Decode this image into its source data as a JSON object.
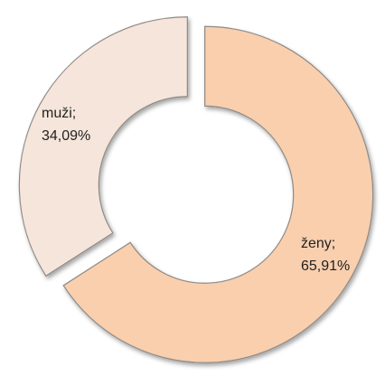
{
  "chart_data": {
    "type": "donut",
    "categories": [
      "ženy",
      "muži"
    ],
    "values": [
      65.91,
      34.09
    ],
    "value_labels": [
      "65,91%",
      "34,09%"
    ],
    "colors": [
      "#f9cfae",
      "#f6e5da"
    ]
  }
}
